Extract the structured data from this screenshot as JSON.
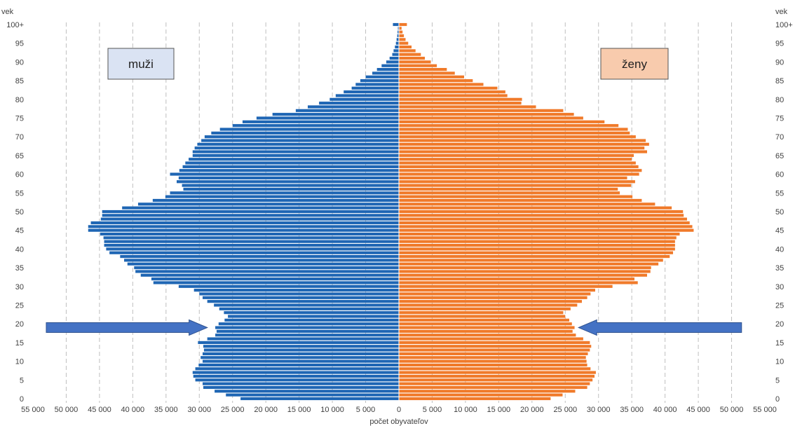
{
  "chart_data": {
    "type": "bar",
    "orientation": "horizontal",
    "variant": "population-pyramid",
    "title": "",
    "xlabel": "počet obyvateľov",
    "ylabel": "vek",
    "xlim": [
      -55000,
      55000
    ],
    "ylim": [
      0,
      100
    ],
    "x_tick_values": [
      -55000,
      -50000,
      -45000,
      -40000,
      -35000,
      -30000,
      -25000,
      -20000,
      -15000,
      -10000,
      -5000,
      0,
      5000,
      10000,
      15000,
      20000,
      25000,
      30000,
      35000,
      40000,
      45000,
      50000,
      55000
    ],
    "x_tick_labels": [
      "55 000",
      "50 000",
      "45 000",
      "40 000",
      "35 000",
      "30 000",
      "25 000",
      "20 000",
      "15 000",
      "10 000",
      "5 000",
      "0",
      "5 000",
      "10 000",
      "15 000",
      "20 000",
      "25 000",
      "30 000",
      "35 000",
      "40 000",
      "45 000",
      "50 000",
      "55 000"
    ],
    "y_tick_values": [
      0,
      5,
      10,
      15,
      20,
      25,
      30,
      35,
      40,
      45,
      50,
      55,
      60,
      65,
      70,
      75,
      80,
      85,
      90,
      95,
      100
    ],
    "y_tick_labels": [
      "0",
      "5",
      "10",
      "15",
      "20",
      "25",
      "30",
      "35",
      "40",
      "45",
      "50",
      "55",
      "60",
      "65",
      "70",
      "75",
      "80",
      "85",
      "90",
      "95",
      "100+"
    ],
    "grid": "vertical dashed",
    "ages": [
      0,
      1,
      2,
      3,
      4,
      5,
      6,
      7,
      8,
      9,
      10,
      11,
      12,
      13,
      14,
      15,
      16,
      17,
      18,
      19,
      20,
      21,
      22,
      23,
      24,
      25,
      26,
      27,
      28,
      29,
      30,
      31,
      32,
      33,
      34,
      35,
      36,
      37,
      38,
      39,
      40,
      41,
      42,
      43,
      44,
      45,
      46,
      47,
      48,
      49,
      50,
      51,
      52,
      53,
      54,
      55,
      56,
      57,
      58,
      59,
      60,
      61,
      62,
      63,
      64,
      65,
      66,
      67,
      68,
      69,
      70,
      71,
      72,
      73,
      74,
      75,
      76,
      77,
      78,
      79,
      80,
      81,
      82,
      83,
      84,
      85,
      86,
      87,
      88,
      89,
      90,
      91,
      92,
      93,
      94,
      95,
      96,
      97,
      98,
      99,
      100
    ],
    "series": [
      {
        "name": "muži",
        "color": "#1f66b4",
        "values": [
          23800,
          26000,
          27700,
          29400,
          29500,
          30600,
          30900,
          31000,
          30600,
          30100,
          29500,
          29800,
          29500,
          29300,
          29400,
          30200,
          28800,
          27600,
          27400,
          27600,
          27100,
          26200,
          25700,
          26300,
          27000,
          27800,
          28800,
          29500,
          30000,
          30800,
          33100,
          36900,
          37200,
          38800,
          39600,
          39800,
          40800,
          41300,
          41900,
          43500,
          44000,
          44300,
          44300,
          44400,
          44900,
          46700,
          46700,
          46300,
          44800,
          44600,
          44600,
          41600,
          39200,
          37000,
          35100,
          34400,
          32400,
          32600,
          33400,
          33100,
          34400,
          33000,
          32500,
          32100,
          31600,
          31000,
          31000,
          30700,
          30300,
          29700,
          29200,
          28200,
          26900,
          25000,
          23500,
          21400,
          19000,
          15500,
          13700,
          12000,
          10400,
          9500,
          8300,
          7100,
          6500,
          5800,
          5000,
          4000,
          3300,
          2600,
          1900,
          1400,
          1000,
          800,
          600,
          450,
          350,
          250,
          200,
          150,
          900
        ],
        "color_note": "blue"
      },
      {
        "name": "ženy",
        "color": "#f07a2a",
        "values": [
          22800,
          24600,
          26500,
          28300,
          28700,
          29100,
          29400,
          29600,
          28800,
          28300,
          28200,
          28100,
          28400,
          28700,
          28900,
          28700,
          27700,
          26600,
          26100,
          26400,
          26000,
          25600,
          25000,
          24700,
          25800,
          26800,
          27500,
          28300,
          28800,
          29500,
          32100,
          35900,
          35400,
          37300,
          37800,
          37900,
          39000,
          39700,
          40700,
          41200,
          41500,
          41500,
          41500,
          41700,
          42200,
          44300,
          44100,
          43700,
          43300,
          42800,
          42700,
          41000,
          38500,
          36500,
          35100,
          33200,
          32900,
          34900,
          35500,
          34300,
          36100,
          36500,
          36000,
          35600,
          35000,
          35300,
          37300,
          36900,
          37600,
          37100,
          35600,
          34700,
          34400,
          33000,
          30900,
          27700,
          26300,
          24700,
          20600,
          18400,
          18500,
          16300,
          16000,
          14800,
          12700,
          11100,
          9800,
          8400,
          7200,
          5700,
          4800,
          3900,
          3300,
          2500,
          1900,
          1400,
          1000,
          750,
          550,
          400,
          1200
        ],
        "color_note": "orange"
      }
    ],
    "legend": [
      {
        "label": "muži",
        "placement": "top-left",
        "fill": "#dae3f3"
      },
      {
        "label": "ženy",
        "placement": "top-right",
        "fill": "#f8cbad"
      }
    ],
    "annotations": [
      {
        "type": "arrow",
        "direction": "right",
        "from_value": 53000,
        "to_value": 28800,
        "age": 19,
        "side": "left",
        "color": "#4472c4"
      },
      {
        "type": "arrow",
        "direction": "left",
        "from_value": 51500,
        "to_value": 27000,
        "age": 19,
        "side": "right",
        "color": "#4472c4"
      }
    ]
  }
}
